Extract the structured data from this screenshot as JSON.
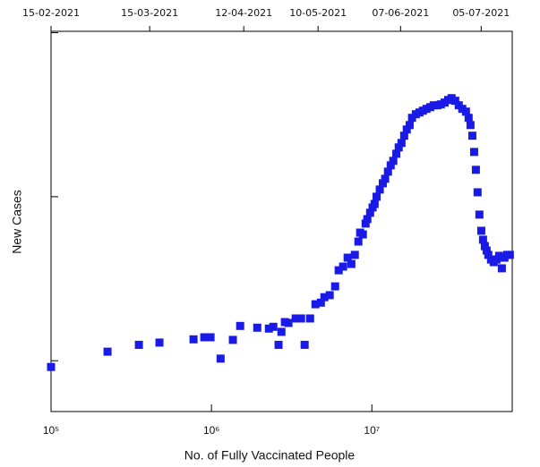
{
  "chart_data": {
    "type": "scatter",
    "x_label": "No. of Fully Vaccinated People",
    "y_label": "New Cases",
    "xscale": "log",
    "yscale": "log",
    "color": "#1a1ae6",
    "xlim": [
      100000,
      75000000
    ],
    "ylim": [
      4900,
      1020000
    ],
    "xticks": [
      {
        "value": 100000,
        "label": "10⁵"
      },
      {
        "value": 1000000,
        "label": "10⁶"
      },
      {
        "value": 10000000,
        "label": "10⁷"
      }
    ],
    "yticks": [
      10000,
      100000,
      1000000
    ],
    "x2ticks": [
      {
        "value": 100000,
        "label": "15-02-2021"
      },
      {
        "value": 412000,
        "label": "15-03-2021"
      },
      {
        "value": 1590000,
        "label": "12-04-2021"
      },
      {
        "value": 4620000,
        "label": "10-05-2021"
      },
      {
        "value": 15100000,
        "label": "07-06-2021"
      },
      {
        "value": 48000000,
        "label": "05-07-2021"
      }
    ],
    "x": [
      100000,
      225000,
      353000,
      474000,
      773000,
      902000,
      987000,
      1140000,
      1360000,
      1510000,
      1930000,
      2280000,
      2430000,
      2620000,
      2730000,
      2870000,
      3020000,
      3350000,
      3620000,
      3810000,
      4120000,
      4450000,
      4810000,
      5060000,
      5460000,
      5900000,
      6210000,
      6620000,
      7060000,
      7450000,
      7830000,
      8240000,
      8450000,
      8790000,
      9140000,
      9370000,
      9750000,
      10100000,
      10400000,
      10700000,
      11200000,
      11700000,
      12100000,
      12600000,
      13100000,
      13600000,
      14200000,
      14700000,
      15300000,
      15900000,
      16500000,
      17200000,
      17800000,
      18800000,
      19800000,
      20800000,
      21900000,
      23100000,
      24300000,
      25600000,
      26900000,
      28400000,
      29900000,
      31400000,
      33100000,
      34800000,
      36600000,
      38600000,
      40100000,
      41200000,
      42300000,
      43400000,
      44500000,
      45600000,
      46800000,
      48100000,
      49300000,
      50600000,
      51900000,
      53200000,
      55300000,
      57500000,
      59800000,
      62100000,
      64600000,
      67100000,
      69800000,
      72500000
    ],
    "values": [
      9160,
      11350,
      12500,
      12900,
      13500,
      13900,
      13900,
      10300,
      13400,
      16300,
      15900,
      15700,
      16100,
      12500,
      15000,
      17200,
      17000,
      18100,
      18100,
      12500,
      18100,
      22100,
      22600,
      24400,
      25100,
      28400,
      35600,
      37500,
      42500,
      38900,
      44200,
      53300,
      60400,
      58900,
      68600,
      73000,
      79800,
      86000,
      90400,
      100000,
      110600,
      120800,
      128600,
      142200,
      155300,
      165500,
      182800,
      199900,
      212800,
      235500,
      257000,
      273500,
      302700,
      318300,
      326400,
      334700,
      343400,
      351600,
      360900,
      360900,
      365600,
      375000,
      389000,
      399000,
      384600,
      360900,
      343400,
      330400,
      302700,
      273500,
      235500,
      187500,
      145900,
      106400,
      77800,
      62000,
      54700,
      50000,
      47000,
      44200,
      41400,
      39900,
      41400,
      43600,
      36600,
      42500,
      44200,
      44200
    ]
  }
}
